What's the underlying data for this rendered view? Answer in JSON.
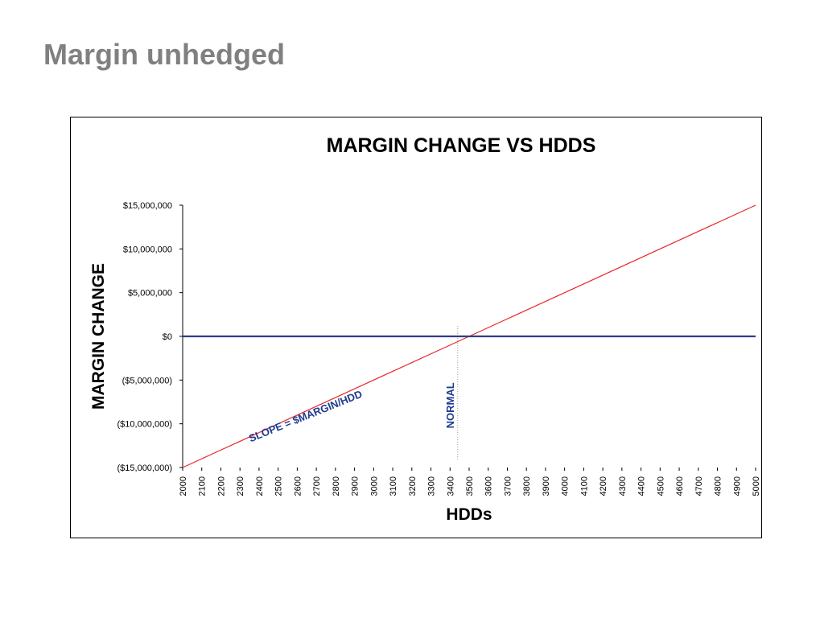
{
  "slide": {
    "title": "Margin unhedged"
  },
  "colors": {
    "margin_line": "#e8262b",
    "zero_line": "#2f3d86",
    "annotation_text": "#1f3c8f",
    "normal_line": "#9a9a9a",
    "axis": "#000000",
    "slide_title": "#808080"
  },
  "chart_data": {
    "type": "line",
    "title": "MARGIN CHANGE VS HDDS",
    "xlabel": "HDDs",
    "ylabel": "MARGIN CHANGE",
    "x": [
      2000,
      2100,
      2200,
      2300,
      2400,
      2500,
      2600,
      2700,
      2800,
      2900,
      3000,
      3100,
      3200,
      3300,
      3400,
      3500,
      3600,
      3700,
      3800,
      3900,
      4000,
      4100,
      4200,
      4300,
      4400,
      4500,
      4600,
      4700,
      4800,
      4900,
      5000
    ],
    "x_tick_labels": [
      "2000",
      "2100",
      "2200",
      "2300",
      "2400",
      "2500",
      "2600",
      "2700",
      "2800",
      "2900",
      "3000",
      "3100",
      "3200",
      "3300",
      "3400",
      "3500",
      "3600",
      "3700",
      "3800",
      "3900",
      "4000",
      "4100",
      "4200",
      "4300",
      "4400",
      "4500",
      "4600",
      "4700",
      "4800",
      "4900",
      "5000"
    ],
    "ylim": [
      -15000000,
      15000000
    ],
    "y_ticks": [
      15000000,
      10000000,
      5000000,
      0,
      -5000000,
      -10000000,
      -15000000
    ],
    "y_tick_labels": [
      "$15,000,000",
      "$10,000,000",
      "$5,000,000",
      "$0",
      "($5,000,000)",
      "($10,000,000)",
      "($15,000,000)"
    ],
    "grid": false,
    "series": [
      {
        "values": [
          -15000000,
          -14000000,
          -13000000,
          -12000000,
          -11000000,
          -10000000,
          -9000000,
          -8000000,
          -7000000,
          -6000000,
          -5000000,
          -4000000,
          -3000000,
          -2000000,
          -1000000,
          0,
          1000000,
          2000000,
          3000000,
          4000000,
          5000000,
          6000000,
          7000000,
          8000000,
          9000000,
          10000000,
          11000000,
          12000000,
          13000000,
          14000000,
          15000000
        ]
      },
      {
        "values": [
          0,
          0,
          0,
          0,
          0,
          0,
          0,
          0,
          0,
          0,
          0,
          0,
          0,
          0,
          0,
          0,
          0,
          0,
          0,
          0,
          0,
          0,
          0,
          0,
          0,
          0,
          0,
          0,
          0,
          0,
          0
        ]
      }
    ],
    "annotations": [
      {
        "text": "SLOPE = $MARGIN/HDD",
        "x": 2650,
        "y": -9500000,
        "rotation": -22
      },
      {
        "text": "NORMAL",
        "x": 3420,
        "y": -7900000,
        "rotation": -90
      }
    ],
    "normal_marker_x": 3440
  }
}
